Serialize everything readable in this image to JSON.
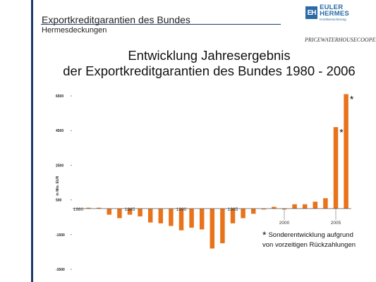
{
  "header": {
    "title": "Exportkreditgarantien des Bundes",
    "subtitle": "Hermesdeckungen"
  },
  "logos": {
    "euler_hermes": "EULER HERMES",
    "euler_hermes_mark": "EH",
    "euler_hermes_sub": "Kreditversicherung",
    "pwc": "PRICEWATERHOUSECOOPERS"
  },
  "chart_data": {
    "type": "bar",
    "title_line1": "Entwicklung Jahresergebnis",
    "title_line2": "der Exportkreditgarantien des Bundes 1980 - 2006",
    "ylabel": "in Mio. EUR",
    "ylim": [
      -3500,
      6500
    ],
    "yticks": [
      "6500",
      "4500",
      "2500",
      "500",
      "-1500",
      "-3500"
    ],
    "ytick_values": [
      6500,
      4500,
      2500,
      500,
      -1500,
      -3500
    ],
    "xtick_labels": [
      "1980",
      "1985",
      "1990",
      "1995",
      "2000",
      "2005"
    ],
    "categories": [
      1980,
      1981,
      1982,
      1983,
      1984,
      1985,
      1986,
      1987,
      1988,
      1989,
      1990,
      1991,
      1992,
      1993,
      1994,
      1995,
      1996,
      1997,
      1998,
      1999,
      2000,
      2001,
      2002,
      2003,
      2004,
      2005,
      2006
    ],
    "values": [
      20,
      50,
      50,
      -350,
      -550,
      -350,
      -450,
      -800,
      -850,
      -1000,
      -1250,
      -1100,
      -1200,
      -2300,
      -2000,
      -850,
      -550,
      -300,
      -50,
      100,
      -50,
      250,
      250,
      400,
      600,
      4700,
      6600
    ],
    "bar_color": "#e8731a",
    "annotated_years": [
      2005,
      2006
    ],
    "annotation_symbol": "*",
    "note_symbol": "*",
    "note_line1": "Sonderentwicklung aufgrund",
    "note_line2": "von vorzeitigen Rückzahlungen"
  }
}
